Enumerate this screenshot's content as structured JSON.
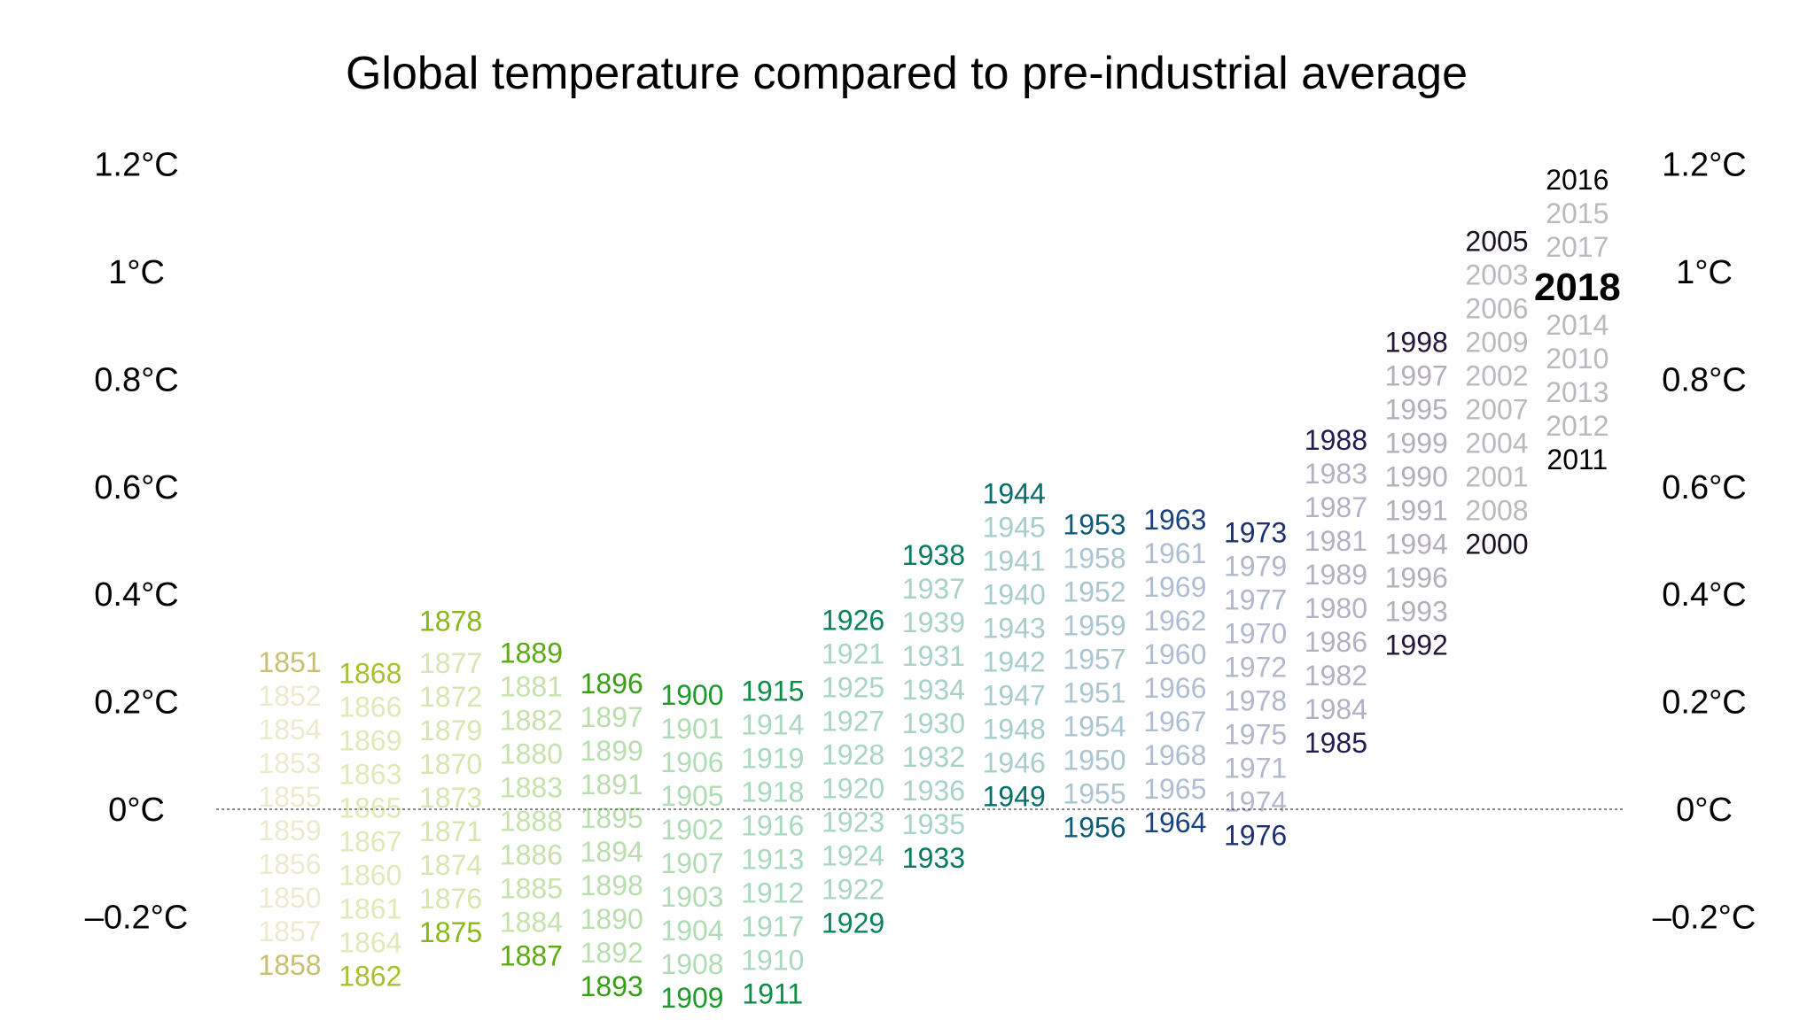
{
  "chart_data": {
    "type": "scatter",
    "title": "Global temperature compared to pre-industrial average",
    "xlabel": "",
    "ylabel": "",
    "ylim": [
      -0.25,
      1.25
    ],
    "grid": false,
    "legend": "none",
    "zero_line": "dotted",
    "y_ticks": [
      -0.2,
      0,
      0.2,
      0.4,
      0.6,
      0.8,
      1.0,
      1.2
    ],
    "y_tick_labels": [
      "–0.2°C",
      "0°C",
      "0.2°C",
      "0.4°C",
      "0.6°C",
      "0.8°C",
      "1°C",
      "1.2°C"
    ],
    "columns_grouped_by": "decade",
    "decade_colors": [
      "#c8c070",
      "#a8c030",
      "#88b818",
      "#5aaa10",
      "#36a014",
      "#1c9a2c",
      "#0a8e46",
      "#088656",
      "#067a62",
      "#066e6c",
      "#0c5a7a",
      "#1a4280",
      "#1e2f6e",
      "#261c52",
      "#24163a",
      "#1a1024",
      "#000000"
    ],
    "faded_recent_color": "#8a8a96",
    "current_year": 2018,
    "highlighted_years": [
      1851,
      1858,
      1868,
      1862,
      1878,
      1875,
      1889,
      1887,
      1896,
      1893,
      1900,
      1909,
      1915,
      1911,
      1926,
      1929,
      1938,
      1933,
      1944,
      1949,
      1953,
      1956,
      1963,
      1964,
      1973,
      1976,
      1988,
      1985,
      1998,
      1992,
      2005,
      2000,
      2016,
      2011
    ],
    "years": [
      1850,
      1851,
      1852,
      1853,
      1854,
      1855,
      1856,
      1857,
      1858,
      1859,
      1860,
      1861,
      1862,
      1863,
      1864,
      1865,
      1866,
      1867,
      1868,
      1869,
      1870,
      1871,
      1872,
      1873,
      1874,
      1875,
      1876,
      1877,
      1878,
      1879,
      1880,
      1881,
      1882,
      1883,
      1884,
      1885,
      1886,
      1887,
      1888,
      1889,
      1890,
      1891,
      1892,
      1893,
      1894,
      1895,
      1896,
      1897,
      1898,
      1899,
      1900,
      1901,
      1902,
      1903,
      1904,
      1905,
      1906,
      1907,
      1908,
      1909,
      1910,
      1911,
      1912,
      1913,
      1914,
      1915,
      1916,
      1917,
      1918,
      1919,
      1920,
      1921,
      1922,
      1923,
      1924,
      1925,
      1926,
      1927,
      1928,
      1929,
      1930,
      1931,
      1932,
      1933,
      1934,
      1935,
      1936,
      1937,
      1938,
      1939,
      1940,
      1941,
      1942,
      1943,
      1944,
      1945,
      1946,
      1947,
      1948,
      1949,
      1950,
      1951,
      1952,
      1953,
      1954,
      1955,
      1956,
      1957,
      1958,
      1959,
      1960,
      1961,
      1962,
      1963,
      1964,
      1965,
      1966,
      1967,
      1968,
      1969,
      1970,
      1971,
      1972,
      1973,
      1974,
      1975,
      1976,
      1977,
      1978,
      1979,
      1980,
      1981,
      1982,
      1983,
      1984,
      1985,
      1986,
      1987,
      1988,
      1989,
      1990,
      1991,
      1992,
      1993,
      1994,
      1995,
      1996,
      1997,
      1998,
      1999,
      2000,
      2001,
      2002,
      2003,
      2004,
      2005,
      2006,
      2007,
      2008,
      2009,
      2010,
      2011,
      2012,
      2013,
      2014,
      2015,
      2016,
      2017,
      2018
    ],
    "values": [
      -0.06,
      0.09,
      0.08,
      0.04,
      0.06,
      0.04,
      -0.05,
      -0.15,
      -0.16,
      0.03,
      -0.03,
      -0.1,
      -0.21,
      0.03,
      -0.18,
      0.03,
      0.06,
      -0.01,
      0.07,
      0.05,
      0.03,
      -0.03,
      0.08,
      0.01,
      -0.06,
      -0.09,
      -0.07,
      0.24,
      0.35,
      0.08,
      0.08,
      0.11,
      0.1,
      0.01,
      -0.1,
      -0.08,
      -0.06,
      -0.11,
      0.0,
      0.14,
      -0.11,
      -0.02,
      -0.15,
      -0.16,
      -0.1,
      -0.08,
      0.12,
      0.1,
      -0.1,
      0.02,
      0.11,
      0.05,
      -0.09,
      -0.17,
      -0.2,
      -0.07,
      0.03,
      -0.16,
      -0.2,
      -0.21,
      -0.18,
      -0.23,
      -0.13,
      -0.11,
      0.07,
      0.17,
      -0.07,
      -0.16,
      -0.02,
      0.04,
      0.06,
      0.12,
      0.01,
      0.03,
      0.02,
      0.1,
      0.2,
      0.1,
      0.1,
      -0.04,
      0.17,
      0.22,
      0.17,
      0.04,
      0.18,
      0.13,
      0.16,
      0.28,
      0.3,
      0.26,
      0.32,
      0.33,
      0.28,
      0.31,
      0.45,
      0.34,
      0.25,
      0.27,
      0.27,
      0.24,
      0.14,
      0.26,
      0.34,
      0.41,
      0.18,
      0.12,
      0.04,
      0.3,
      0.36,
      0.33,
      0.26,
      0.35,
      0.32,
      0.36,
      0.09,
      0.17,
      0.24,
      0.24,
      0.2,
      0.34,
      0.28,
      0.12,
      0.25,
      0.37,
      0.1,
      0.16,
      0.07,
      0.36,
      0.25,
      0.37,
      0.4,
      0.45,
      0.32,
      0.5,
      0.3,
      0.28,
      0.36,
      0.5,
      0.51,
      0.43,
      0.61,
      0.56,
      0.42,
      0.46,
      0.52,
      0.64,
      0.49,
      0.7,
      0.85,
      0.62,
      0.6,
      0.75,
      0.81,
      0.82,
      0.76,
      0.86,
      0.82,
      0.8,
      0.71,
      0.82,
      0.87,
      0.74,
      0.78,
      0.82,
      0.89,
      1.07,
      1.11,
      0.99,
      0.91
    ]
  }
}
